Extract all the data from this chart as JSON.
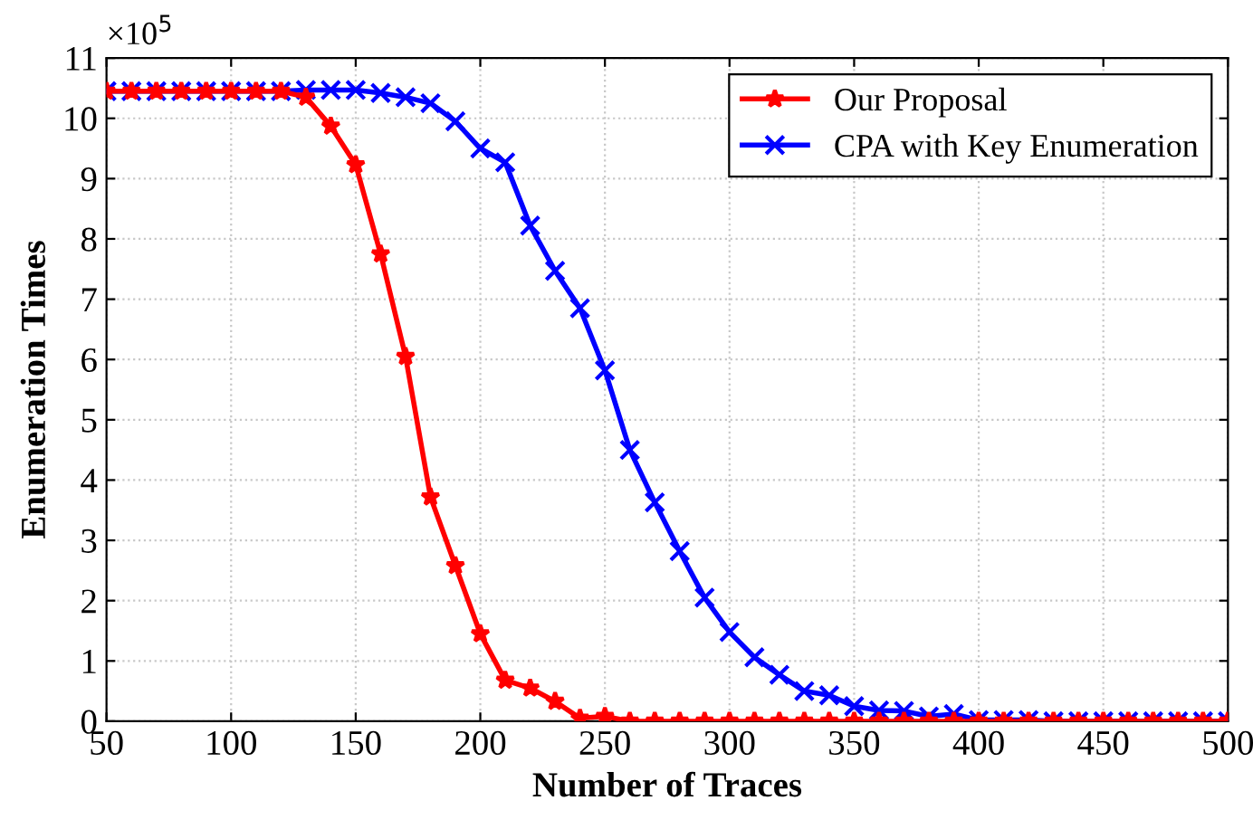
{
  "chart_data": {
    "type": "line",
    "xlabel": "Number of Traces",
    "ylabel": "Enumeration Times",
    "annotations": [
      "×10$^{5}$"
    ],
    "x": [
      50,
      60,
      70,
      80,
      90,
      100,
      110,
      120,
      130,
      140,
      150,
      160,
      170,
      180,
      190,
      200,
      210,
      220,
      230,
      240,
      250,
      260,
      270,
      280,
      290,
      300,
      310,
      320,
      330,
      340,
      350,
      360,
      370,
      380,
      390,
      400,
      410,
      420,
      430,
      440,
      450,
      460,
      470,
      480,
      490,
      500
    ],
    "series": [
      {
        "name": "Our Proposal",
        "color": "#ff0000",
        "marker": "star",
        "values": [
          10.45,
          10.45,
          10.45,
          10.45,
          10.45,
          10.45,
          10.45,
          10.45,
          10.35,
          9.87,
          9.23,
          7.75,
          6.05,
          3.72,
          2.58,
          1.45,
          0.68,
          0.55,
          0.33,
          0.05,
          0.08,
          0,
          0,
          0,
          0,
          0,
          0,
          0,
          0,
          0,
          0,
          0,
          0,
          0,
          0,
          0,
          0,
          0,
          0,
          0,
          0,
          0,
          0,
          0,
          0,
          0
        ]
      },
      {
        "name": "CPA with Key Enumeration",
        "color": "#0000ff",
        "marker": "cross",
        "values": [
          10.45,
          10.45,
          10.45,
          10.45,
          10.45,
          10.45,
          10.45,
          10.45,
          10.47,
          10.47,
          10.47,
          10.42,
          10.35,
          10.25,
          9.95,
          9.5,
          9.27,
          8.22,
          7.47,
          6.85,
          5.82,
          4.5,
          3.63,
          2.82,
          2.05,
          1.48,
          1.06,
          0.77,
          0.5,
          0.43,
          0.25,
          0.18,
          0.17,
          0.08,
          0.12,
          0.02,
          0.02,
          0.02,
          0,
          0,
          0,
          0,
          0,
          0,
          0,
          0
        ]
      }
    ],
    "xlim": [
      50,
      500
    ],
    "xticks": [
      50,
      100,
      150,
      200,
      250,
      300,
      350,
      400,
      450,
      500
    ],
    "ylim": [
      0,
      11
    ],
    "yticks": [
      0,
      1,
      2,
      3,
      4,
      5,
      6,
      7,
      8,
      9,
      10,
      11
    ],
    "grid": true,
    "legend": "top right",
    "line_style": "solid"
  }
}
